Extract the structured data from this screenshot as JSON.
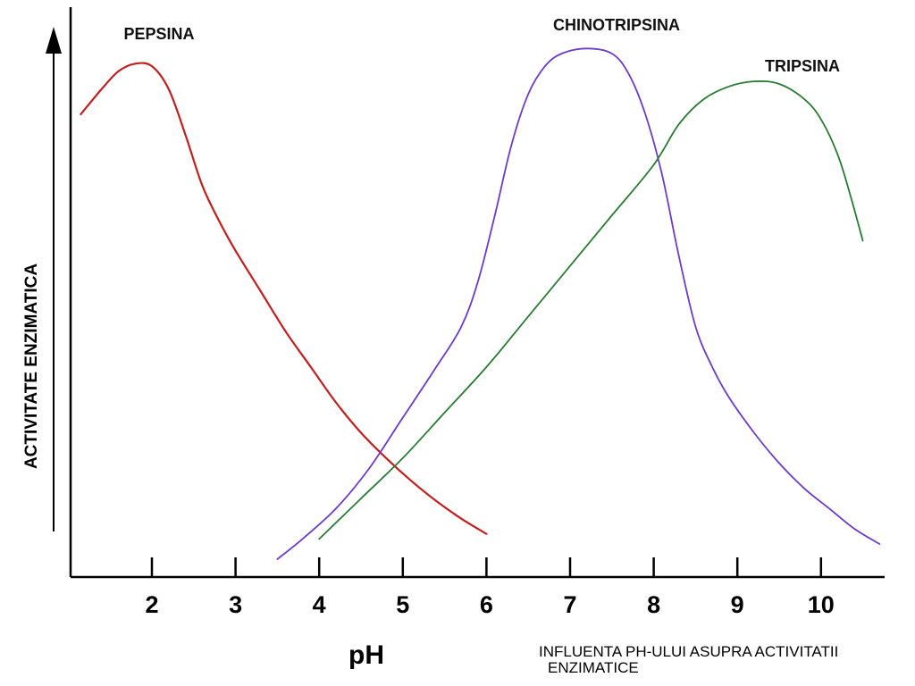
{
  "chart_data": {
    "type": "line",
    "title": "",
    "xlabel": "pH",
    "ylabel": "ACTIVITATE ENZIMATICA",
    "xlim": [
      1.1,
      10.8
    ],
    "ylim": [
      0,
      1
    ],
    "x_ticks": [
      2,
      3,
      4,
      5,
      6,
      7,
      8,
      9,
      10
    ],
    "y_ticks": [],
    "grid": false,
    "legend": "none (series labelled directly above their peaks)",
    "series": [
      {
        "name": "PEPSINA",
        "color": "#c02020",
        "points": [
          [
            1.15,
            0.88
          ],
          [
            1.4,
            0.93
          ],
          [
            1.6,
            0.965
          ],
          [
            1.8,
            0.98
          ],
          [
            2.0,
            0.975
          ],
          [
            2.2,
            0.93
          ],
          [
            2.4,
            0.84
          ],
          [
            2.6,
            0.74
          ],
          [
            2.8,
            0.67
          ],
          [
            3.0,
            0.61
          ],
          [
            3.3,
            0.53
          ],
          [
            3.6,
            0.45
          ],
          [
            3.9,
            0.38
          ],
          [
            4.2,
            0.31
          ],
          [
            4.5,
            0.25
          ],
          [
            4.8,
            0.2
          ],
          [
            5.1,
            0.155
          ],
          [
            5.4,
            0.115
          ],
          [
            5.7,
            0.08
          ],
          [
            6.0,
            0.05
          ]
        ]
      },
      {
        "name": "CHINOTRIPSINA",
        "color": "#6a3cc8",
        "points": [
          [
            3.5,
            0.0
          ],
          [
            3.8,
            0.04
          ],
          [
            4.2,
            0.1
          ],
          [
            4.6,
            0.18
          ],
          [
            5.0,
            0.28
          ],
          [
            5.4,
            0.38
          ],
          [
            5.7,
            0.46
          ],
          [
            5.9,
            0.55
          ],
          [
            6.1,
            0.68
          ],
          [
            6.3,
            0.82
          ],
          [
            6.5,
            0.92
          ],
          [
            6.7,
            0.975
          ],
          [
            6.9,
            1.0
          ],
          [
            7.2,
            1.01
          ],
          [
            7.5,
            1.0
          ],
          [
            7.7,
            0.96
          ],
          [
            7.9,
            0.88
          ],
          [
            8.1,
            0.76
          ],
          [
            8.3,
            0.6
          ],
          [
            8.5,
            0.46
          ],
          [
            8.7,
            0.38
          ],
          [
            8.9,
            0.32
          ],
          [
            9.2,
            0.25
          ],
          [
            9.5,
            0.19
          ],
          [
            9.8,
            0.14
          ],
          [
            10.1,
            0.1
          ],
          [
            10.4,
            0.06
          ],
          [
            10.7,
            0.03
          ]
        ]
      },
      {
        "name": "TRIPSINA",
        "color": "#2a7a34",
        "points": [
          [
            4.0,
            0.04
          ],
          [
            4.5,
            0.12
          ],
          [
            5.0,
            0.2
          ],
          [
            5.5,
            0.29
          ],
          [
            6.0,
            0.38
          ],
          [
            6.5,
            0.48
          ],
          [
            7.0,
            0.58
          ],
          [
            7.5,
            0.68
          ],
          [
            8.0,
            0.78
          ],
          [
            8.3,
            0.86
          ],
          [
            8.6,
            0.91
          ],
          [
            8.9,
            0.935
          ],
          [
            9.2,
            0.945
          ],
          [
            9.5,
            0.94
          ],
          [
            9.8,
            0.91
          ],
          [
            10.0,
            0.87
          ],
          [
            10.2,
            0.8
          ],
          [
            10.35,
            0.72
          ],
          [
            10.5,
            0.63
          ]
        ]
      }
    ]
  },
  "caption": {
    "line1": "INFLUENTA PH-ULUI ASUPRA ACTIVITATII",
    "line2": "ENZIMATICE"
  }
}
